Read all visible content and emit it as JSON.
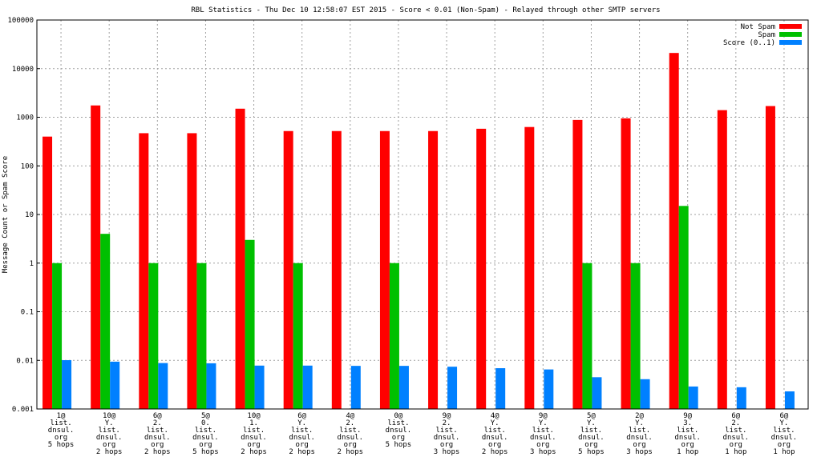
{
  "chart_data": {
    "type": "bar",
    "title": "RBL Statistics - Thu Dec 10 12:58:07 EST 2015 - Score < 0.01 (Non-Spam) - Relayed through other SMTP servers",
    "xlabel": "",
    "ylabel": "Message Count or Spam Score",
    "yscale": "log",
    "ylim": [
      0.001,
      100000
    ],
    "grid": true,
    "legend_position": "top-right",
    "yticks": [
      "0.001",
      "0.01",
      "0.1",
      "1",
      "10",
      "100",
      "1000",
      "10000",
      "100000"
    ],
    "categories": [
      [
        "1@",
        "list.",
        "dnsul.",
        "org",
        "5 hops"
      ],
      [
        "10@",
        "Y.",
        "list.",
        "dnsul.",
        "org",
        "2 hops"
      ],
      [
        "6@",
        "2.",
        "list.",
        "dnsul.",
        "org",
        "2 hops"
      ],
      [
        "5@",
        "0.",
        "list.",
        "dnsul.",
        "org",
        "5 hops"
      ],
      [
        "10@",
        "1.",
        "list.",
        "dnsul.",
        "org",
        "2 hops"
      ],
      [
        "6@",
        "Y.",
        "list.",
        "dnsul.",
        "org",
        "2 hops"
      ],
      [
        "4@",
        "2.",
        "list.",
        "dnsul.",
        "org",
        "2 hops"
      ],
      [
        "0@",
        "list.",
        "dnsul.",
        "org",
        "5 hops"
      ],
      [
        "9@",
        "2.",
        "list.",
        "dnsul.",
        "org",
        "3 hops"
      ],
      [
        "4@",
        "Y.",
        "list.",
        "dnsul.",
        "org",
        "2 hops"
      ],
      [
        "9@",
        "Y.",
        "list.",
        "dnsul.",
        "org",
        "3 hops"
      ],
      [
        "5@",
        "Y.",
        "list.",
        "dnsul.",
        "org",
        "5 hops"
      ],
      [
        "2@",
        "Y.",
        "list.",
        "dnsul.",
        "org",
        "3 hops"
      ],
      [
        "9@",
        "3.",
        "list.",
        "dnsul.",
        "org",
        "1 hop"
      ],
      [
        "6@",
        "2.",
        "list.",
        "dnsul.",
        "org",
        "1 hop"
      ],
      [
        "6@",
        "Y.",
        "list.",
        "dnsul.",
        "org",
        "1 hop"
      ]
    ],
    "series": [
      {
        "name": "Not Spam",
        "color": "#ff0000",
        "values": [
          400,
          1750,
          470,
          470,
          1500,
          520,
          520,
          520,
          520,
          580,
          630,
          880,
          950,
          21000,
          1400,
          1700
        ]
      },
      {
        "name": "Spam",
        "color": "#00c000",
        "values": [
          1,
          4,
          1,
          1,
          3,
          1,
          null,
          1,
          null,
          null,
          null,
          1,
          1,
          15,
          null,
          null
        ]
      },
      {
        "name": "Score (0..1)",
        "color": "#0080ff",
        "values": [
          0.0101,
          0.0094,
          0.0088,
          0.0087,
          0.0078,
          0.0078,
          0.0077,
          0.0077,
          0.0074,
          0.0069,
          0.0065,
          0.0045,
          0.0041,
          0.0029,
          0.0028,
          0.0023
        ]
      }
    ]
  }
}
